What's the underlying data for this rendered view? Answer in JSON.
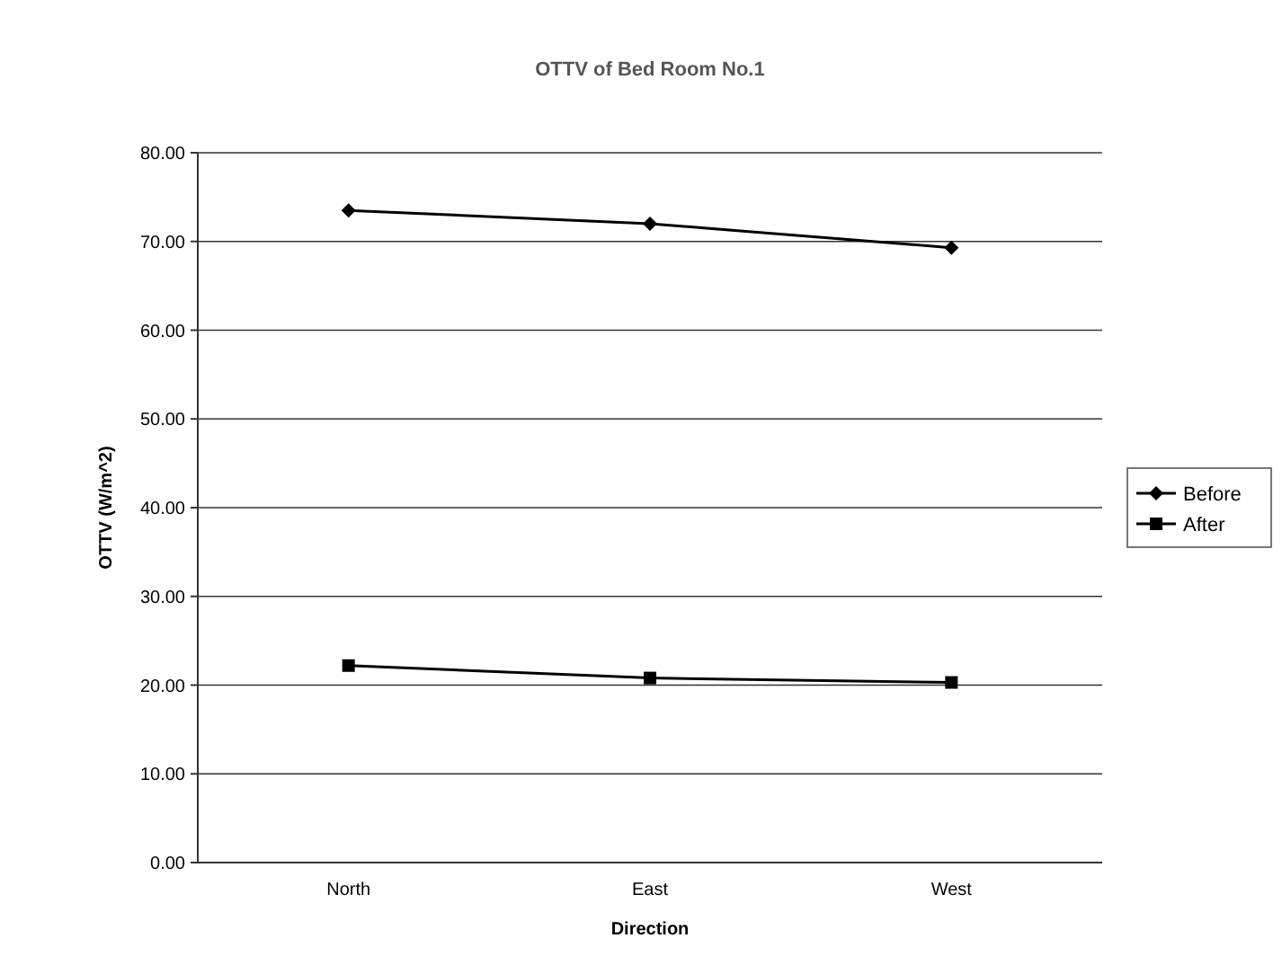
{
  "chart_data": {
    "type": "line",
    "title": "OTTV of Bed Room No.1",
    "xlabel": "Direction",
    "ylabel": "OTTV (W/m^2)",
    "categories": [
      "North",
      "East",
      "West"
    ],
    "series": [
      {
        "name": "Before",
        "color": "#000000",
        "marker": "diamond",
        "values": [
          73.5,
          72.0,
          69.3
        ]
      },
      {
        "name": "After",
        "color": "#000000",
        "marker": "square",
        "values": [
          22.2,
          20.8,
          20.3
        ]
      }
    ],
    "ylim": [
      0,
      80
    ],
    "yticks": [
      {
        "value": 0,
        "label": "0.00"
      },
      {
        "value": 10,
        "label": "10.00"
      },
      {
        "value": 20,
        "label": "20.00"
      },
      {
        "value": 30,
        "label": "30.00"
      },
      {
        "value": 40,
        "label": "40.00"
      },
      {
        "value": 50,
        "label": "50.00"
      },
      {
        "value": 60,
        "label": "60.00"
      },
      {
        "value": 70,
        "label": "70.00"
      },
      {
        "value": 80,
        "label": "80.00"
      }
    ],
    "grid": "y",
    "legend": "right",
    "line_style": "solid"
  }
}
